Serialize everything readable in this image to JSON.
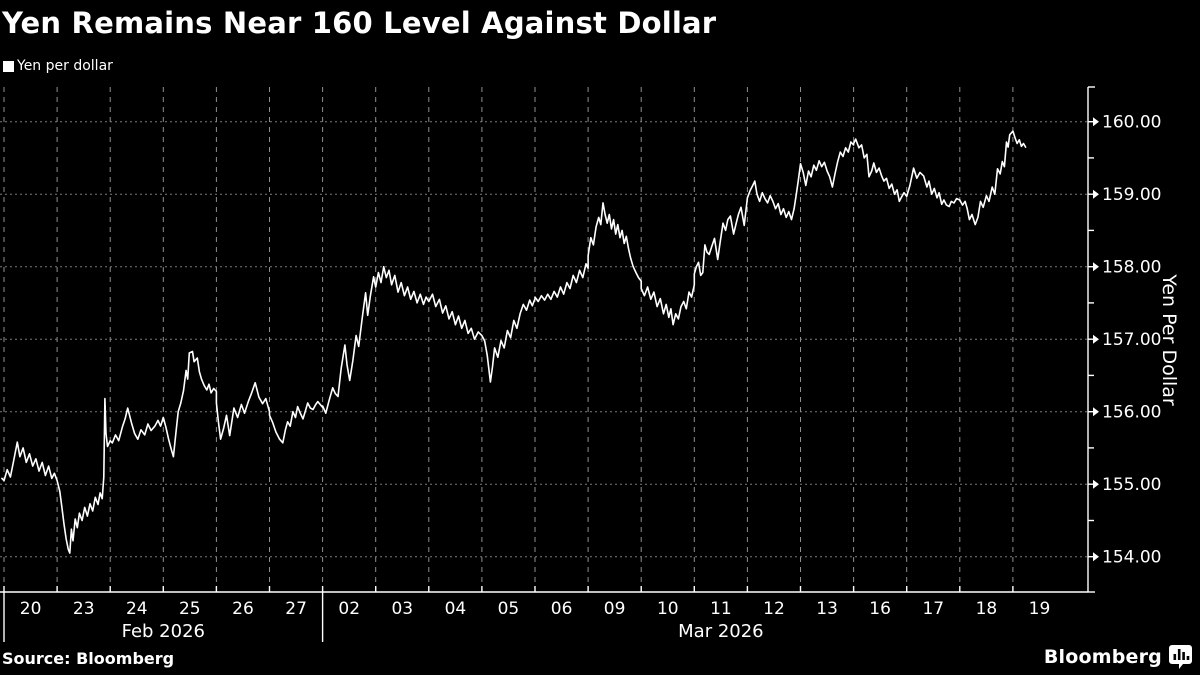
{
  "title": "Yen Remains Near 160 Level Against Dollar",
  "legend": {
    "label": "Yen per dollar",
    "marker_color": "#ffffff"
  },
  "source": "Source: Bloomberg",
  "brand": {
    "name": "Bloomberg",
    "icon": "bar-chart-bubble-icon"
  },
  "colors": {
    "background": "#000000",
    "text": "#ffffff",
    "line": "#ffffff",
    "grid_vertical": "#8f8f8f",
    "grid_horizontal": "#7a7a7a",
    "axis": "#ffffff"
  },
  "chart_data": {
    "type": "line",
    "title": "Yen Remains Near 160 Level Against Dollar",
    "series_name": "Yen per dollar",
    "xlabel": "",
    "ylabel": "Yen Per Dollar",
    "ylim": [
      153.5,
      160.5
    ],
    "grid": "dashed",
    "legend_position": "top-left",
    "yticks": [
      {
        "value": 154,
        "label": "154.00"
      },
      {
        "value": 155,
        "label": "155.00"
      },
      {
        "value": 156,
        "label": "156.00"
      },
      {
        "value": 157,
        "label": "157.00"
      },
      {
        "value": 158,
        "label": "158.00"
      },
      {
        "value": 159,
        "label": "159.00"
      },
      {
        "value": 160,
        "label": "160.00"
      }
    ],
    "y_minor_ticks": [
      154.5,
      155.5,
      156.5,
      157.5,
      158.5,
      159.5
    ],
    "months": [
      {
        "label": "Feb 2026",
        "count": 6
      },
      {
        "label": "Mar 2026",
        "count": 14
      }
    ],
    "days": [
      {
        "label": "20",
        "points": [
          -0.04,
          155.08,
          0,
          155.05,
          0.06,
          155.2,
          0.12,
          155.1,
          0.18,
          155.32,
          0.25,
          155.58,
          0.3,
          155.38,
          0.36,
          155.5,
          0.42,
          155.3,
          0.48,
          155.42,
          0.54,
          155.25,
          0.6,
          155.35,
          0.66,
          155.18,
          0.72,
          155.3,
          0.78,
          155.12,
          0.84,
          155.25,
          0.9,
          155.08,
          0.95,
          155.15,
          1,
          155.05
        ]
      },
      {
        "label": "23",
        "points": [
          0,
          155.05,
          0.05,
          154.9,
          0.09,
          154.68,
          0.13,
          154.45,
          0.17,
          154.25,
          0.21,
          154.1,
          0.24,
          154.05,
          0.27,
          154.38,
          0.3,
          154.22,
          0.34,
          154.52,
          0.38,
          154.4,
          0.42,
          154.6,
          0.47,
          154.5,
          0.52,
          154.68,
          0.57,
          154.56,
          0.62,
          154.73,
          0.67,
          154.63,
          0.72,
          154.82,
          0.77,
          154.72,
          0.81,
          154.88,
          0.85,
          154.8,
          0.88,
          155.1,
          0.9,
          156.18,
          0.92,
          155.7,
          0.95,
          155.52,
          1,
          155.6
        ]
      },
      {
        "label": "24",
        "points": [
          0,
          155.6,
          0.04,
          155.57,
          0.1,
          155.68,
          0.16,
          155.6,
          0.23,
          155.79,
          0.28,
          155.9,
          0.33,
          156.05,
          0.4,
          155.85,
          0.46,
          155.7,
          0.52,
          155.62,
          0.58,
          155.75,
          0.65,
          155.68,
          0.71,
          155.83,
          0.77,
          155.74,
          0.84,
          155.8,
          0.9,
          155.88,
          0.95,
          155.8,
          1,
          155.92
        ]
      },
      {
        "label": "25",
        "points": [
          0,
          155.92,
          0.05,
          155.78,
          0.1,
          155.62,
          0.15,
          155.48,
          0.19,
          155.38,
          0.24,
          155.72,
          0.28,
          156.0,
          0.33,
          156.12,
          0.38,
          156.29,
          0.43,
          156.57,
          0.46,
          156.45,
          0.49,
          156.81,
          0.55,
          156.83,
          0.58,
          156.69,
          0.64,
          156.74,
          0.68,
          156.55,
          0.72,
          156.45,
          0.77,
          156.36,
          0.82,
          156.3,
          0.86,
          156.38,
          0.9,
          156.26,
          0.95,
          156.32,
          1,
          156.28
        ]
      },
      {
        "label": "26",
        "points": [
          0,
          156.12,
          0.04,
          155.85,
          0.08,
          155.62,
          0.14,
          155.78,
          0.19,
          155.95,
          0.25,
          155.67,
          0.33,
          156.05,
          0.4,
          155.92,
          0.47,
          156.1,
          0.53,
          155.98,
          0.6,
          156.14,
          0.66,
          156.25,
          0.73,
          156.4,
          0.8,
          156.2,
          0.87,
          156.11,
          0.93,
          156.18,
          1,
          156.0
        ]
      },
      {
        "label": "27",
        "points": [
          0,
          155.95,
          0.06,
          155.85,
          0.12,
          155.72,
          0.19,
          155.62,
          0.25,
          155.57,
          0.3,
          155.75,
          0.34,
          155.86,
          0.39,
          155.8,
          0.44,
          156.0,
          0.49,
          155.92,
          0.53,
          156.07,
          0.58,
          155.98,
          0.63,
          155.9,
          0.68,
          156.02,
          0.72,
          156.12,
          0.77,
          156.05,
          0.82,
          156.03,
          0.87,
          156.1,
          0.91,
          156.14,
          1,
          156.06
        ]
      },
      {
        "label": "02",
        "points": [
          0,
          156.08,
          0.06,
          155.98,
          0.12,
          156.15,
          0.19,
          156.33,
          0.24,
          156.25,
          0.29,
          156.21,
          0.35,
          156.6,
          0.42,
          156.92,
          0.46,
          156.65,
          0.51,
          156.43,
          0.57,
          156.71,
          0.63,
          157.05,
          0.68,
          156.9,
          0.75,
          157.31,
          0.81,
          157.64,
          0.85,
          157.33,
          0.9,
          157.6,
          0.96,
          157.86,
          1,
          157.72
        ]
      },
      {
        "label": "03",
        "points": [
          0,
          157.72,
          0.05,
          157.92,
          0.1,
          157.78,
          0.15,
          158.0,
          0.2,
          157.85,
          0.25,
          157.95,
          0.3,
          157.75,
          0.36,
          157.88,
          0.42,
          157.65,
          0.48,
          157.78,
          0.54,
          157.6,
          0.6,
          157.72,
          0.66,
          157.55,
          0.72,
          157.66,
          0.78,
          157.5,
          0.84,
          157.62,
          0.9,
          157.48,
          0.95,
          157.58,
          1,
          157.52
        ]
      },
      {
        "label": "04",
        "points": [
          0,
          157.52,
          0.07,
          157.62,
          0.13,
          157.45,
          0.2,
          157.55,
          0.26,
          157.36,
          0.32,
          157.46,
          0.38,
          157.28,
          0.44,
          157.38,
          0.5,
          157.2,
          0.56,
          157.32,
          0.62,
          157.15,
          0.68,
          157.26,
          0.74,
          157.08,
          0.8,
          157.15,
          0.86,
          157.0,
          0.93,
          157.1,
          1,
          157.05
        ]
      },
      {
        "label": "05",
        "points": [
          0,
          157.05,
          0.05,
          156.98,
          0.1,
          156.78,
          0.16,
          156.41,
          0.2,
          156.62,
          0.24,
          156.88,
          0.3,
          156.75,
          0.36,
          156.98,
          0.42,
          156.88,
          0.48,
          157.12,
          0.54,
          157.02,
          0.6,
          157.26,
          0.66,
          157.15,
          0.72,
          157.35,
          0.78,
          157.48,
          0.84,
          157.4,
          0.9,
          157.54,
          0.95,
          157.46,
          1,
          157.56
        ]
      },
      {
        "label": "06",
        "points": [
          0,
          157.58,
          0.06,
          157.52,
          0.12,
          157.6,
          0.18,
          157.54,
          0.24,
          157.62,
          0.3,
          157.55,
          0.36,
          157.66,
          0.42,
          157.58,
          0.48,
          157.72,
          0.54,
          157.62,
          0.6,
          157.78,
          0.66,
          157.7,
          0.72,
          157.88,
          0.78,
          157.78,
          0.84,
          157.95,
          0.9,
          157.85,
          0.96,
          158.04,
          1,
          157.98
        ]
      },
      {
        "label": "09",
        "points": [
          0,
          158.15,
          0.05,
          158.4,
          0.1,
          158.3,
          0.15,
          158.55,
          0.2,
          158.68,
          0.24,
          158.58,
          0.28,
          158.88,
          0.32,
          158.72,
          0.36,
          158.6,
          0.4,
          158.72,
          0.44,
          158.52,
          0.48,
          158.65,
          0.52,
          158.45,
          0.56,
          158.58,
          0.6,
          158.4,
          0.64,
          158.5,
          0.68,
          158.32,
          0.72,
          158.42,
          0.76,
          158.25,
          0.8,
          158.12,
          0.85,
          158.0,
          0.9,
          157.92,
          0.95,
          157.85,
          1,
          157.8
        ]
      },
      {
        "label": "10",
        "points": [
          0,
          157.7,
          0.06,
          157.6,
          0.12,
          157.72,
          0.18,
          157.55,
          0.24,
          157.65,
          0.3,
          157.45,
          0.36,
          157.56,
          0.42,
          157.35,
          0.47,
          157.48,
          0.52,
          157.3,
          0.56,
          157.42,
          0.6,
          157.2,
          0.65,
          157.35,
          0.7,
          157.28,
          0.75,
          157.45,
          0.8,
          157.52,
          0.85,
          157.42,
          0.9,
          157.65,
          0.95,
          157.58,
          1,
          157.75
        ]
      },
      {
        "label": "11",
        "points": [
          0,
          157.9,
          0.04,
          158.0,
          0.08,
          158.06,
          0.12,
          157.88,
          0.16,
          157.92,
          0.2,
          158.3,
          0.24,
          158.2,
          0.28,
          158.17,
          0.33,
          158.28,
          0.38,
          158.39,
          0.44,
          158.1,
          0.49,
          158.35,
          0.54,
          158.6,
          0.59,
          158.5,
          0.63,
          158.65,
          0.68,
          158.7,
          0.74,
          158.45,
          0.79,
          158.6,
          0.83,
          158.72,
          0.88,
          158.82,
          0.94,
          158.57,
          1,
          158.95
        ]
      },
      {
        "label": "12",
        "points": [
          0,
          158.95,
          0.05,
          159.05,
          0.1,
          159.12,
          0.14,
          159.18,
          0.18,
          159.0,
          0.23,
          158.9,
          0.28,
          159.02,
          0.33,
          158.94,
          0.38,
          158.88,
          0.43,
          158.98,
          0.48,
          158.9,
          0.53,
          158.8,
          0.58,
          158.87,
          0.63,
          158.72,
          0.68,
          158.8,
          0.73,
          158.68,
          0.78,
          158.76,
          0.83,
          158.65,
          0.88,
          158.8,
          0.92,
          159.0,
          0.96,
          159.2,
          1,
          159.42
        ]
      },
      {
        "label": "13",
        "points": [
          0,
          159.42,
          0.05,
          159.3,
          0.1,
          159.12,
          0.15,
          159.32,
          0.2,
          159.24,
          0.25,
          159.4,
          0.3,
          159.33,
          0.35,
          159.46,
          0.4,
          159.38,
          0.45,
          159.44,
          0.5,
          159.32,
          0.55,
          159.24,
          0.6,
          159.1,
          0.65,
          159.28,
          0.7,
          159.45,
          0.75,
          159.58,
          0.8,
          159.52,
          0.85,
          159.64,
          0.9,
          159.58,
          0.95,
          159.72,
          1,
          159.68
        ]
      },
      {
        "label": "16",
        "points": [
          0,
          159.7,
          0.04,
          159.76,
          0.1,
          159.64,
          0.15,
          159.68,
          0.2,
          159.5,
          0.25,
          159.55,
          0.29,
          159.24,
          0.34,
          159.32,
          0.38,
          159.43,
          0.43,
          159.3,
          0.48,
          159.36,
          0.53,
          159.25,
          0.57,
          159.18,
          0.62,
          159.22,
          0.67,
          159.08,
          0.72,
          159.14,
          0.77,
          159.0,
          0.82,
          159.06,
          0.86,
          158.9,
          0.91,
          158.97,
          0.95,
          159.02,
          1,
          158.97
        ]
      },
      {
        "label": "17",
        "points": [
          0,
          158.97,
          0.06,
          159.12,
          0.13,
          159.36,
          0.19,
          159.22,
          0.25,
          159.3,
          0.32,
          159.25,
          0.38,
          159.1,
          0.42,
          159.18,
          0.47,
          159.0,
          0.52,
          159.08,
          0.57,
          158.95,
          0.61,
          159.02,
          0.66,
          158.86,
          0.7,
          158.92,
          0.75,
          158.85,
          0.8,
          158.83,
          0.84,
          158.9,
          0.89,
          158.88,
          0.94,
          158.94,
          1,
          158.92
        ]
      },
      {
        "label": "18",
        "points": [
          0,
          158.92,
          0.05,
          158.85,
          0.1,
          158.9,
          0.14,
          158.8,
          0.18,
          158.65,
          0.23,
          158.72,
          0.29,
          158.58,
          0.34,
          158.68,
          0.39,
          158.9,
          0.44,
          158.82,
          0.5,
          158.98,
          0.55,
          158.9,
          0.61,
          159.1,
          0.66,
          159.0,
          0.71,
          159.35,
          0.76,
          159.28,
          0.8,
          159.45,
          0.84,
          159.38,
          0.88,
          159.72,
          0.91,
          159.65,
          0.94,
          159.82,
          1,
          159.87
        ]
      },
      {
        "label": "19",
        "points": [
          0,
          159.87,
          0.04,
          159.78,
          0.08,
          159.7,
          0.12,
          159.75,
          0.16,
          159.66,
          0.2,
          159.7,
          0.24,
          159.65
        ]
      }
    ]
  }
}
